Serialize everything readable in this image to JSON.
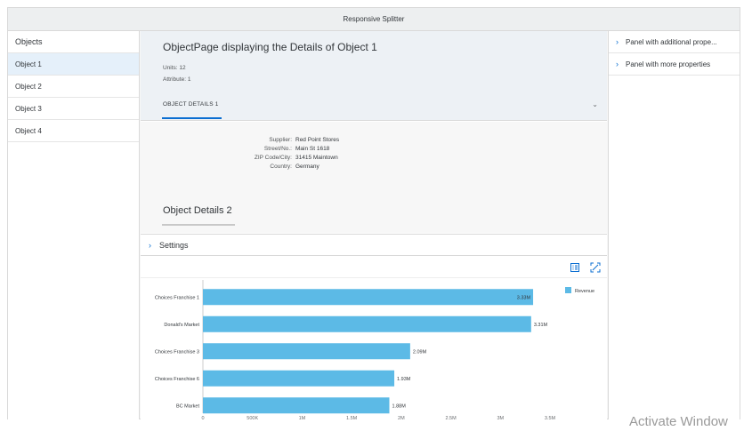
{
  "app": {
    "title": "Responsive Splitter"
  },
  "left": {
    "title": "Objects",
    "items": [
      {
        "label": "Object 1",
        "selected": true
      },
      {
        "label": "Object 2",
        "selected": false
      },
      {
        "label": "Object 3",
        "selected": false
      },
      {
        "label": "Object 4",
        "selected": false
      }
    ]
  },
  "object_page": {
    "title": "ObjectPage displaying the Details of Object 1",
    "units": "Units: 12",
    "attribute": "Attribute: 1",
    "tab": "OBJECT DETAILS 1",
    "form": [
      {
        "label": "Supplier:",
        "value": "Red Point Stores"
      },
      {
        "label": "Street/No.:",
        "value": "Main St 1618"
      },
      {
        "label": "ZIP Code/City:",
        "value": "31415 Maintown"
      },
      {
        "label": "Country:",
        "value": "Germany"
      }
    ],
    "section2_title": "Object Details 2",
    "settings_label": "Settings"
  },
  "right": {
    "panels": [
      {
        "label": "Panel with additional prope..."
      },
      {
        "label": "Panel with more properties"
      }
    ]
  },
  "colors": {
    "bar": "#5cbae6",
    "accent": "#0a6ed1"
  },
  "chart_data": {
    "type": "bar",
    "orientation": "horizontal",
    "categories": [
      "Choices Franchise 1",
      "Donald's Market",
      "Choices Franchise 3",
      "Choices Franchise 6",
      "BC Market"
    ],
    "series": [
      {
        "name": "Revenue",
        "values": [
          3.33,
          3.31,
          2.09,
          1.93,
          1.88
        ]
      }
    ],
    "data_labels": [
      "3.33M",
      "3.31M",
      "2.09M",
      "1.93M",
      "1.88M"
    ],
    "x_ticks": [
      "0",
      "500K",
      "1M",
      "1.5M",
      "2M",
      "2.5M",
      "3M",
      "3.5M"
    ],
    "xlim": [
      0,
      3.5
    ],
    "unit": "M",
    "legend_position": "top-right",
    "grid": false
  },
  "watermark": "Activate Window"
}
